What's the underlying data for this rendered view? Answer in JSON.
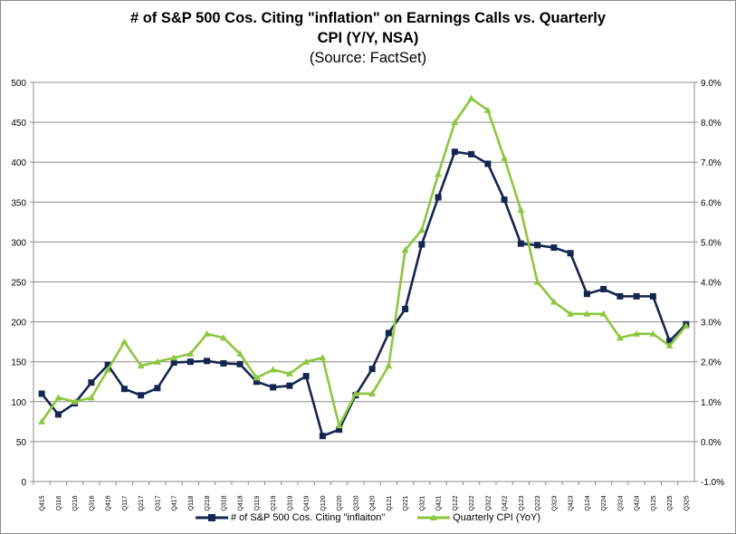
{
  "chart_data": {
    "type": "line",
    "title": "# of S&P 500 Cos. Citing \"inflation\" on Earnings Calls vs. Quarterly CPI (Y/Y, NSA)",
    "title_line1": "# of S&P 500 Cos. Citing \"inflation\" on Earnings Calls vs. Quarterly",
    "title_line2": "CPI (Y/Y, NSA)",
    "subtitle": "(Source: FactSet)",
    "categories": [
      "Q415",
      "Q116",
      "Q216",
      "Q316",
      "Q416",
      "Q117",
      "Q217",
      "Q317",
      "Q417",
      "Q118",
      "Q218",
      "Q318",
      "Q418",
      "Q119",
      "Q219",
      "Q319",
      "Q419",
      "Q120",
      "Q220",
      "Q320",
      "Q420",
      "Q121",
      "Q221",
      "Q321",
      "Q421",
      "Q122",
      "Q222",
      "Q322",
      "Q422",
      "Q123",
      "Q223",
      "Q323",
      "Q423",
      "Q124",
      "Q224",
      "Q324",
      "Q424",
      "Q125",
      "Q225",
      "Q325"
    ],
    "left_axis": {
      "ylim": [
        0,
        500
      ],
      "ticks": [
        "0",
        "50",
        "100",
        "150",
        "200",
        "250",
        "300",
        "350",
        "400",
        "450",
        "500"
      ]
    },
    "right_axis": {
      "ylim": [
        -1.0,
        9.0
      ],
      "ticks": [
        "-1.0%",
        "0.0%",
        "1.0%",
        "2.0%",
        "3.0%",
        "4.0%",
        "5.0%",
        "6.0%",
        "7.0%",
        "8.0%",
        "9.0%"
      ]
    },
    "grid": true,
    "legend_position": "bottom",
    "series": [
      {
        "name": "# of S&P 500 Cos. Citing \"inflaiton\"",
        "axis": "left",
        "marker": "square",
        "color": "#14254f",
        "values": [
          110,
          84,
          98,
          124,
          146,
          116,
          108,
          117,
          149,
          150,
          151,
          148,
          147,
          125,
          118,
          120,
          132,
          57,
          65,
          108,
          141,
          186,
          216,
          297,
          356,
          413,
          410,
          398,
          353,
          298,
          296,
          293,
          286,
          235,
          241,
          232,
          232,
          232,
          176,
          197
        ]
      },
      {
        "name": "Quarterly CPI (YoY)",
        "axis": "right",
        "marker": "triangle",
        "color": "#8dc63f",
        "values": [
          0.5,
          1.1,
          1.0,
          1.1,
          1.8,
          2.5,
          1.9,
          2.0,
          2.1,
          2.2,
          2.7,
          2.6,
          2.2,
          1.6,
          1.8,
          1.7,
          2.0,
          2.1,
          0.4,
          1.2,
          1.2,
          1.9,
          4.8,
          5.3,
          6.7,
          8.0,
          8.6,
          8.3,
          7.1,
          5.8,
          4.0,
          3.5,
          3.2,
          3.2,
          3.2,
          2.6,
          2.7,
          2.7,
          2.4,
          2.9
        ]
      }
    ]
  }
}
